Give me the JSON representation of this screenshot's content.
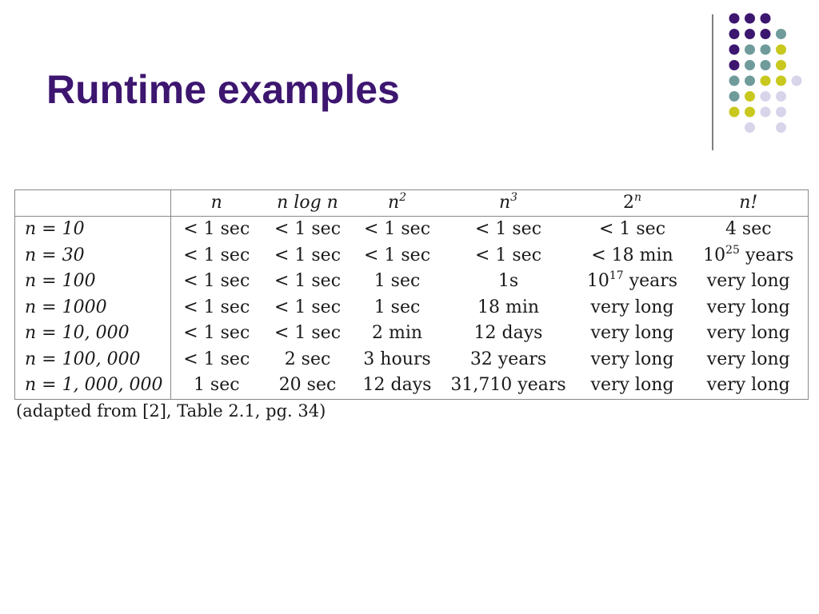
{
  "slide": {
    "title": "Runtime examples"
  },
  "decoration": {
    "colors": {
      "purple": "#3d1670",
      "teal": "#6f9b9b",
      "olive": "#c8c81e",
      "lavender": "#d8d4ea"
    }
  },
  "table": {
    "header": {
      "corner": "",
      "cols": [
        {
          "base": "n",
          "sup": ""
        },
        {
          "base": "n log n",
          "sup": ""
        },
        {
          "base": "n",
          "sup": "2"
        },
        {
          "base": "n",
          "sup": "3"
        },
        {
          "base": "2",
          "sup": "n"
        },
        {
          "base": "n!",
          "sup": ""
        }
      ]
    },
    "rows": [
      {
        "label": "n = 10",
        "cells": [
          {
            "text": "< 1 sec",
            "sup": "",
            "tail": ""
          },
          {
            "text": "< 1 sec",
            "sup": "",
            "tail": ""
          },
          {
            "text": "< 1 sec",
            "sup": "",
            "tail": ""
          },
          {
            "text": "< 1 sec",
            "sup": "",
            "tail": ""
          },
          {
            "text": "< 1 sec",
            "sup": "",
            "tail": ""
          },
          {
            "text": "4 sec",
            "sup": "",
            "tail": ""
          }
        ]
      },
      {
        "label": "n = 30",
        "cells": [
          {
            "text": "< 1 sec",
            "sup": "",
            "tail": ""
          },
          {
            "text": "< 1 sec",
            "sup": "",
            "tail": ""
          },
          {
            "text": "< 1 sec",
            "sup": "",
            "tail": ""
          },
          {
            "text": "< 1 sec",
            "sup": "",
            "tail": ""
          },
          {
            "text": "< 18 min",
            "sup": "",
            "tail": ""
          },
          {
            "text": "10",
            "sup": "25",
            "tail": " years"
          }
        ]
      },
      {
        "label": "n = 100",
        "cells": [
          {
            "text": "< 1 sec",
            "sup": "",
            "tail": ""
          },
          {
            "text": "< 1 sec",
            "sup": "",
            "tail": ""
          },
          {
            "text": "1 sec",
            "sup": "",
            "tail": ""
          },
          {
            "text": "1s",
            "sup": "",
            "tail": ""
          },
          {
            "text": "10",
            "sup": "17",
            "tail": " years"
          },
          {
            "text": "very long",
            "sup": "",
            "tail": ""
          }
        ]
      },
      {
        "label": "n = 1000",
        "cells": [
          {
            "text": "< 1 sec",
            "sup": "",
            "tail": ""
          },
          {
            "text": "< 1 sec",
            "sup": "",
            "tail": ""
          },
          {
            "text": "1 sec",
            "sup": "",
            "tail": ""
          },
          {
            "text": "18 min",
            "sup": "",
            "tail": ""
          },
          {
            "text": "very long",
            "sup": "",
            "tail": ""
          },
          {
            "text": "very long",
            "sup": "",
            "tail": ""
          }
        ]
      },
      {
        "label": "n = 10, 000",
        "cells": [
          {
            "text": "< 1 sec",
            "sup": "",
            "tail": ""
          },
          {
            "text": "< 1 sec",
            "sup": "",
            "tail": ""
          },
          {
            "text": "2 min",
            "sup": "",
            "tail": ""
          },
          {
            "text": "12 days",
            "sup": "",
            "tail": ""
          },
          {
            "text": "very long",
            "sup": "",
            "tail": ""
          },
          {
            "text": "very long",
            "sup": "",
            "tail": ""
          }
        ]
      },
      {
        "label": "n = 100, 000",
        "cells": [
          {
            "text": "< 1 sec",
            "sup": "",
            "tail": ""
          },
          {
            "text": "2 sec",
            "sup": "",
            "tail": ""
          },
          {
            "text": "3 hours",
            "sup": "",
            "tail": ""
          },
          {
            "text": "32 years",
            "sup": "",
            "tail": ""
          },
          {
            "text": "very long",
            "sup": "",
            "tail": ""
          },
          {
            "text": "very long",
            "sup": "",
            "tail": ""
          }
        ]
      },
      {
        "label": "n = 1, 000, 000",
        "cells": [
          {
            "text": "1 sec",
            "sup": "",
            "tail": ""
          },
          {
            "text": "20 sec",
            "sup": "",
            "tail": ""
          },
          {
            "text": "12 days",
            "sup": "",
            "tail": ""
          },
          {
            "text": "31,710 years",
            "sup": "",
            "tail": ""
          },
          {
            "text": "very long",
            "sup": "",
            "tail": ""
          },
          {
            "text": "very long",
            "sup": "",
            "tail": ""
          }
        ]
      }
    ]
  },
  "caption": "(adapted from [2], Table 2.1, pg. 34)"
}
